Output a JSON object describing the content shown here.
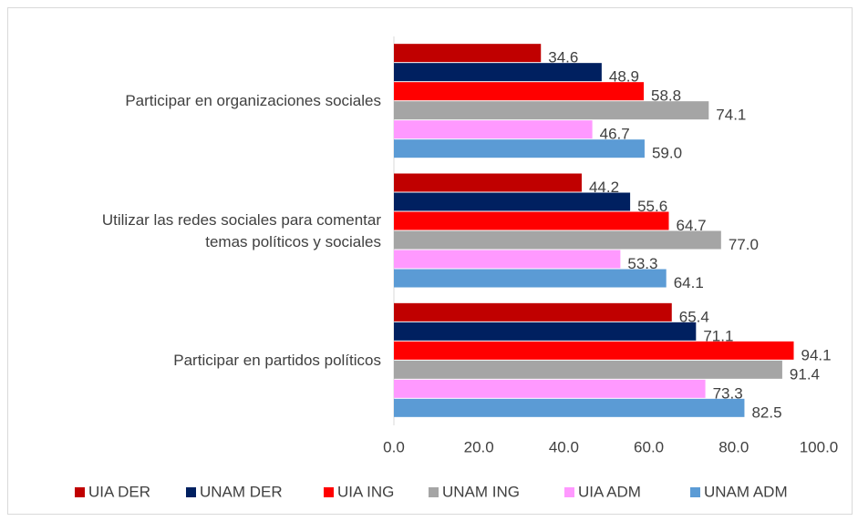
{
  "chart_data": {
    "type": "bar",
    "orientation": "horizontal",
    "categories": [
      "Participar en organizaciones sociales",
      "Utilizar las redes sociales para comentar\ntemas políticos y sociales",
      "Participar en partidos políticos"
    ],
    "series": [
      {
        "name": "UIA DER",
        "color": "#c00000",
        "values": [
          34.6,
          44.2,
          65.4
        ],
        "value_labels": [
          "34.6",
          "44.2",
          "65.4"
        ]
      },
      {
        "name": "UNAM DER",
        "color": "#002060",
        "values": [
          48.9,
          55.6,
          71.1
        ],
        "value_labels": [
          "48.9",
          "55.6",
          "71.1"
        ]
      },
      {
        "name": "UIA ING",
        "color": "#ff0000",
        "values": [
          58.8,
          64.7,
          94.1
        ],
        "value_labels": [
          "58.8",
          "64.7",
          "94.1"
        ]
      },
      {
        "name": "UNAM ING",
        "color": "#a5a5a5",
        "values": [
          74.1,
          77.0,
          91.4
        ],
        "value_labels": [
          "74.1",
          "77.0",
          "91.4"
        ]
      },
      {
        "name": "UIA ADM",
        "color": "#ff99ff",
        "values": [
          46.7,
          53.3,
          73.3
        ],
        "value_labels": [
          "46.7",
          "53.3",
          "73.3"
        ]
      },
      {
        "name": "UNAM ADM",
        "color": "#5b9bd5",
        "values": [
          59.0,
          64.1,
          82.5
        ],
        "value_labels": [
          "59.0",
          "64.1",
          "82.5"
        ]
      }
    ],
    "xlim": [
      0,
      100
    ],
    "xticks": [
      {
        "value": 0,
        "label": "0.0"
      },
      {
        "value": 20,
        "label": "20.0"
      },
      {
        "value": 40,
        "label": "40.0"
      },
      {
        "value": 60,
        "label": "60.0"
      },
      {
        "value": 80,
        "label": "80.0"
      },
      {
        "value": 100,
        "label": "100.0"
      }
    ],
    "grid": false,
    "legend": "bottom"
  }
}
